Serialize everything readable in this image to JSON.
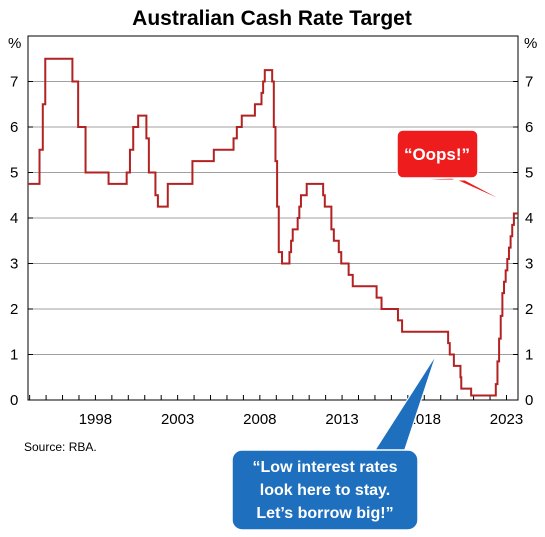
{
  "chart_data": {
    "type": "line",
    "title": "Australian Cash Rate Target",
    "ylabel_left": "%",
    "ylabel_right": "%",
    "ylim": [
      0,
      8
    ],
    "y_ticks": [
      "0",
      "1",
      "2",
      "3",
      "4",
      "5",
      "6",
      "7"
    ],
    "xlim": [
      1993.9,
      2023.7
    ],
    "x_ticks": [
      {
        "label": "1998",
        "value": 1998
      },
      {
        "label": "2003",
        "value": 2003
      },
      {
        "label": "2008",
        "value": 2008
      },
      {
        "label": "2013",
        "value": 2013
      },
      {
        "label": "2018",
        "value": 2018
      },
      {
        "label": "2023",
        "value": 2023
      }
    ],
    "grid": true,
    "line_color": "#b22222",
    "series": [
      {
        "values": [
          [
            1993.9,
            4.75
          ],
          [
            1994.6,
            4.75
          ],
          [
            1994.6,
            5.5
          ],
          [
            1994.8,
            5.5
          ],
          [
            1994.8,
            6.5
          ],
          [
            1994.95,
            6.5
          ],
          [
            1994.95,
            7.5
          ],
          [
            1996.6,
            7.5
          ],
          [
            1996.6,
            7.0
          ],
          [
            1996.95,
            7.0
          ],
          [
            1996.95,
            6.0
          ],
          [
            1997.4,
            6.0
          ],
          [
            1997.4,
            5.0
          ],
          [
            1998.8,
            5.0
          ],
          [
            1998.8,
            4.75
          ],
          [
            1999.9,
            4.75
          ],
          [
            1999.9,
            5.0
          ],
          [
            2000.1,
            5.0
          ],
          [
            2000.1,
            5.5
          ],
          [
            2000.3,
            5.5
          ],
          [
            2000.3,
            6.0
          ],
          [
            2000.6,
            6.0
          ],
          [
            2000.6,
            6.25
          ],
          [
            2001.1,
            6.25
          ],
          [
            2001.1,
            5.75
          ],
          [
            2001.25,
            5.75
          ],
          [
            2001.25,
            5.0
          ],
          [
            2001.65,
            5.0
          ],
          [
            2001.65,
            4.5
          ],
          [
            2001.8,
            4.5
          ],
          [
            2001.8,
            4.25
          ],
          [
            2002.4,
            4.25
          ],
          [
            2002.4,
            4.75
          ],
          [
            2003.9,
            4.75
          ],
          [
            2003.9,
            5.25
          ],
          [
            2005.2,
            5.25
          ],
          [
            2005.2,
            5.5
          ],
          [
            2006.4,
            5.5
          ],
          [
            2006.4,
            5.75
          ],
          [
            2006.6,
            5.75
          ],
          [
            2006.6,
            6.0
          ],
          [
            2006.9,
            6.0
          ],
          [
            2006.9,
            6.25
          ],
          [
            2007.7,
            6.25
          ],
          [
            2007.7,
            6.5
          ],
          [
            2008.1,
            6.5
          ],
          [
            2008.1,
            6.75
          ],
          [
            2008.2,
            6.75
          ],
          [
            2008.2,
            7.0
          ],
          [
            2008.3,
            7.0
          ],
          [
            2008.3,
            7.25
          ],
          [
            2008.75,
            7.25
          ],
          [
            2008.75,
            7.0
          ],
          [
            2008.85,
            7.0
          ],
          [
            2008.85,
            6.0
          ],
          [
            2008.95,
            6.0
          ],
          [
            2008.95,
            5.25
          ],
          [
            2009.05,
            5.25
          ],
          [
            2009.05,
            4.25
          ],
          [
            2009.15,
            4.25
          ],
          [
            2009.15,
            3.25
          ],
          [
            2009.35,
            3.25
          ],
          [
            2009.35,
            3.0
          ],
          [
            2009.8,
            3.0
          ],
          [
            2009.8,
            3.25
          ],
          [
            2009.9,
            3.25
          ],
          [
            2009.9,
            3.5
          ],
          [
            2010.0,
            3.5
          ],
          [
            2010.0,
            3.75
          ],
          [
            2010.3,
            3.75
          ],
          [
            2010.3,
            4.0
          ],
          [
            2010.4,
            4.0
          ],
          [
            2010.4,
            4.25
          ],
          [
            2010.5,
            4.25
          ],
          [
            2010.5,
            4.5
          ],
          [
            2010.85,
            4.5
          ],
          [
            2010.85,
            4.75
          ],
          [
            2011.85,
            4.75
          ],
          [
            2011.85,
            4.5
          ],
          [
            2011.95,
            4.5
          ],
          [
            2011.95,
            4.25
          ],
          [
            2012.35,
            4.25
          ],
          [
            2012.35,
            3.75
          ],
          [
            2012.5,
            3.75
          ],
          [
            2012.5,
            3.5
          ],
          [
            2012.8,
            3.5
          ],
          [
            2012.8,
            3.25
          ],
          [
            2012.95,
            3.25
          ],
          [
            2012.95,
            3.0
          ],
          [
            2013.4,
            3.0
          ],
          [
            2013.4,
            2.75
          ],
          [
            2013.65,
            2.75
          ],
          [
            2013.65,
            2.5
          ],
          [
            2015.1,
            2.5
          ],
          [
            2015.1,
            2.25
          ],
          [
            2015.4,
            2.25
          ],
          [
            2015.4,
            2.0
          ],
          [
            2016.4,
            2.0
          ],
          [
            2016.4,
            1.75
          ],
          [
            2016.65,
            1.75
          ],
          [
            2016.65,
            1.5
          ],
          [
            2019.45,
            1.5
          ],
          [
            2019.45,
            1.25
          ],
          [
            2019.55,
            1.25
          ],
          [
            2019.55,
            1.0
          ],
          [
            2019.8,
            1.0
          ],
          [
            2019.8,
            0.75
          ],
          [
            2020.2,
            0.75
          ],
          [
            2020.2,
            0.5
          ],
          [
            2020.25,
            0.5
          ],
          [
            2020.25,
            0.25
          ],
          [
            2020.85,
            0.25
          ],
          [
            2020.85,
            0.1
          ],
          [
            2022.35,
            0.1
          ],
          [
            2022.35,
            0.35
          ],
          [
            2022.45,
            0.35
          ],
          [
            2022.45,
            0.85
          ],
          [
            2022.55,
            0.85
          ],
          [
            2022.55,
            1.35
          ],
          [
            2022.65,
            1.35
          ],
          [
            2022.65,
            1.85
          ],
          [
            2022.75,
            1.85
          ],
          [
            2022.75,
            2.35
          ],
          [
            2022.85,
            2.35
          ],
          [
            2022.85,
            2.6
          ],
          [
            2022.95,
            2.6
          ],
          [
            2022.95,
            2.85
          ],
          [
            2023.05,
            2.85
          ],
          [
            2023.05,
            3.1
          ],
          [
            2023.15,
            3.1
          ],
          [
            2023.15,
            3.35
          ],
          [
            2023.25,
            3.35
          ],
          [
            2023.25,
            3.6
          ],
          [
            2023.35,
            3.6
          ],
          [
            2023.35,
            3.85
          ],
          [
            2023.45,
            3.85
          ],
          [
            2023.45,
            4.1
          ],
          [
            2023.7,
            4.1
          ]
        ]
      }
    ],
    "source": "Source:   RBA."
  },
  "callouts": {
    "red": {
      "text": "“Oops!”",
      "color": "#ee1c1c"
    },
    "blue": {
      "lines": [
        "“Low interest rates",
        "look here to stay.",
        "Let’s borrow big!”"
      ],
      "color": "#1f6fbf"
    }
  }
}
